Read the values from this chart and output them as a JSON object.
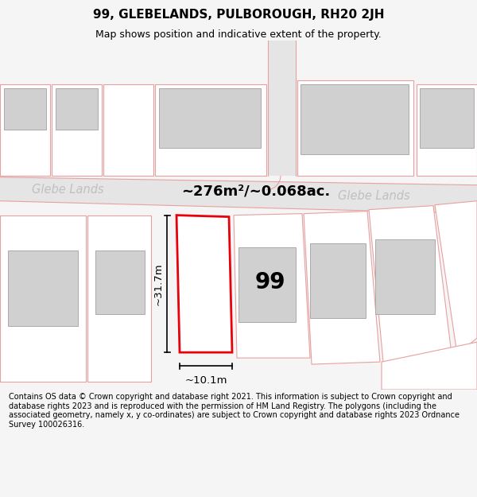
{
  "title": "99, GLEBELANDS, PULBOROUGH, RH20 2JH",
  "subtitle": "Map shows position and indicative extent of the property.",
  "footer_lines": [
    "Contains OS data © Crown copyright and database right 2021. This information is subject to Crown copyright and database rights 2023 and is reproduced with the permission of",
    "HM Land Registry. The polygons (including the associated geometry, namely x, y co-ordinates) are subject to Crown copyright and database rights 2023 Ordnance Survey",
    "100026316."
  ],
  "area_label": "~276m²/~0.068ac.",
  "width_label": "~10.1m",
  "height_label": "~31.7m",
  "number_label": "99",
  "street_label_left": "Glebe Lands",
  "street_label_right": "Glebe Lands",
  "bg_color": "#f5f5f5",
  "map_bg": "#ffffff",
  "plot_color": "#e8000a",
  "road_color": "#e5e5e5",
  "building_fill": "#d0d0d0",
  "pink_line": "#e8a0a0",
  "road_text_color": "#c0c0c0",
  "title_fontsize": 11,
  "subtitle_fontsize": 9,
  "footer_fontsize": 7
}
